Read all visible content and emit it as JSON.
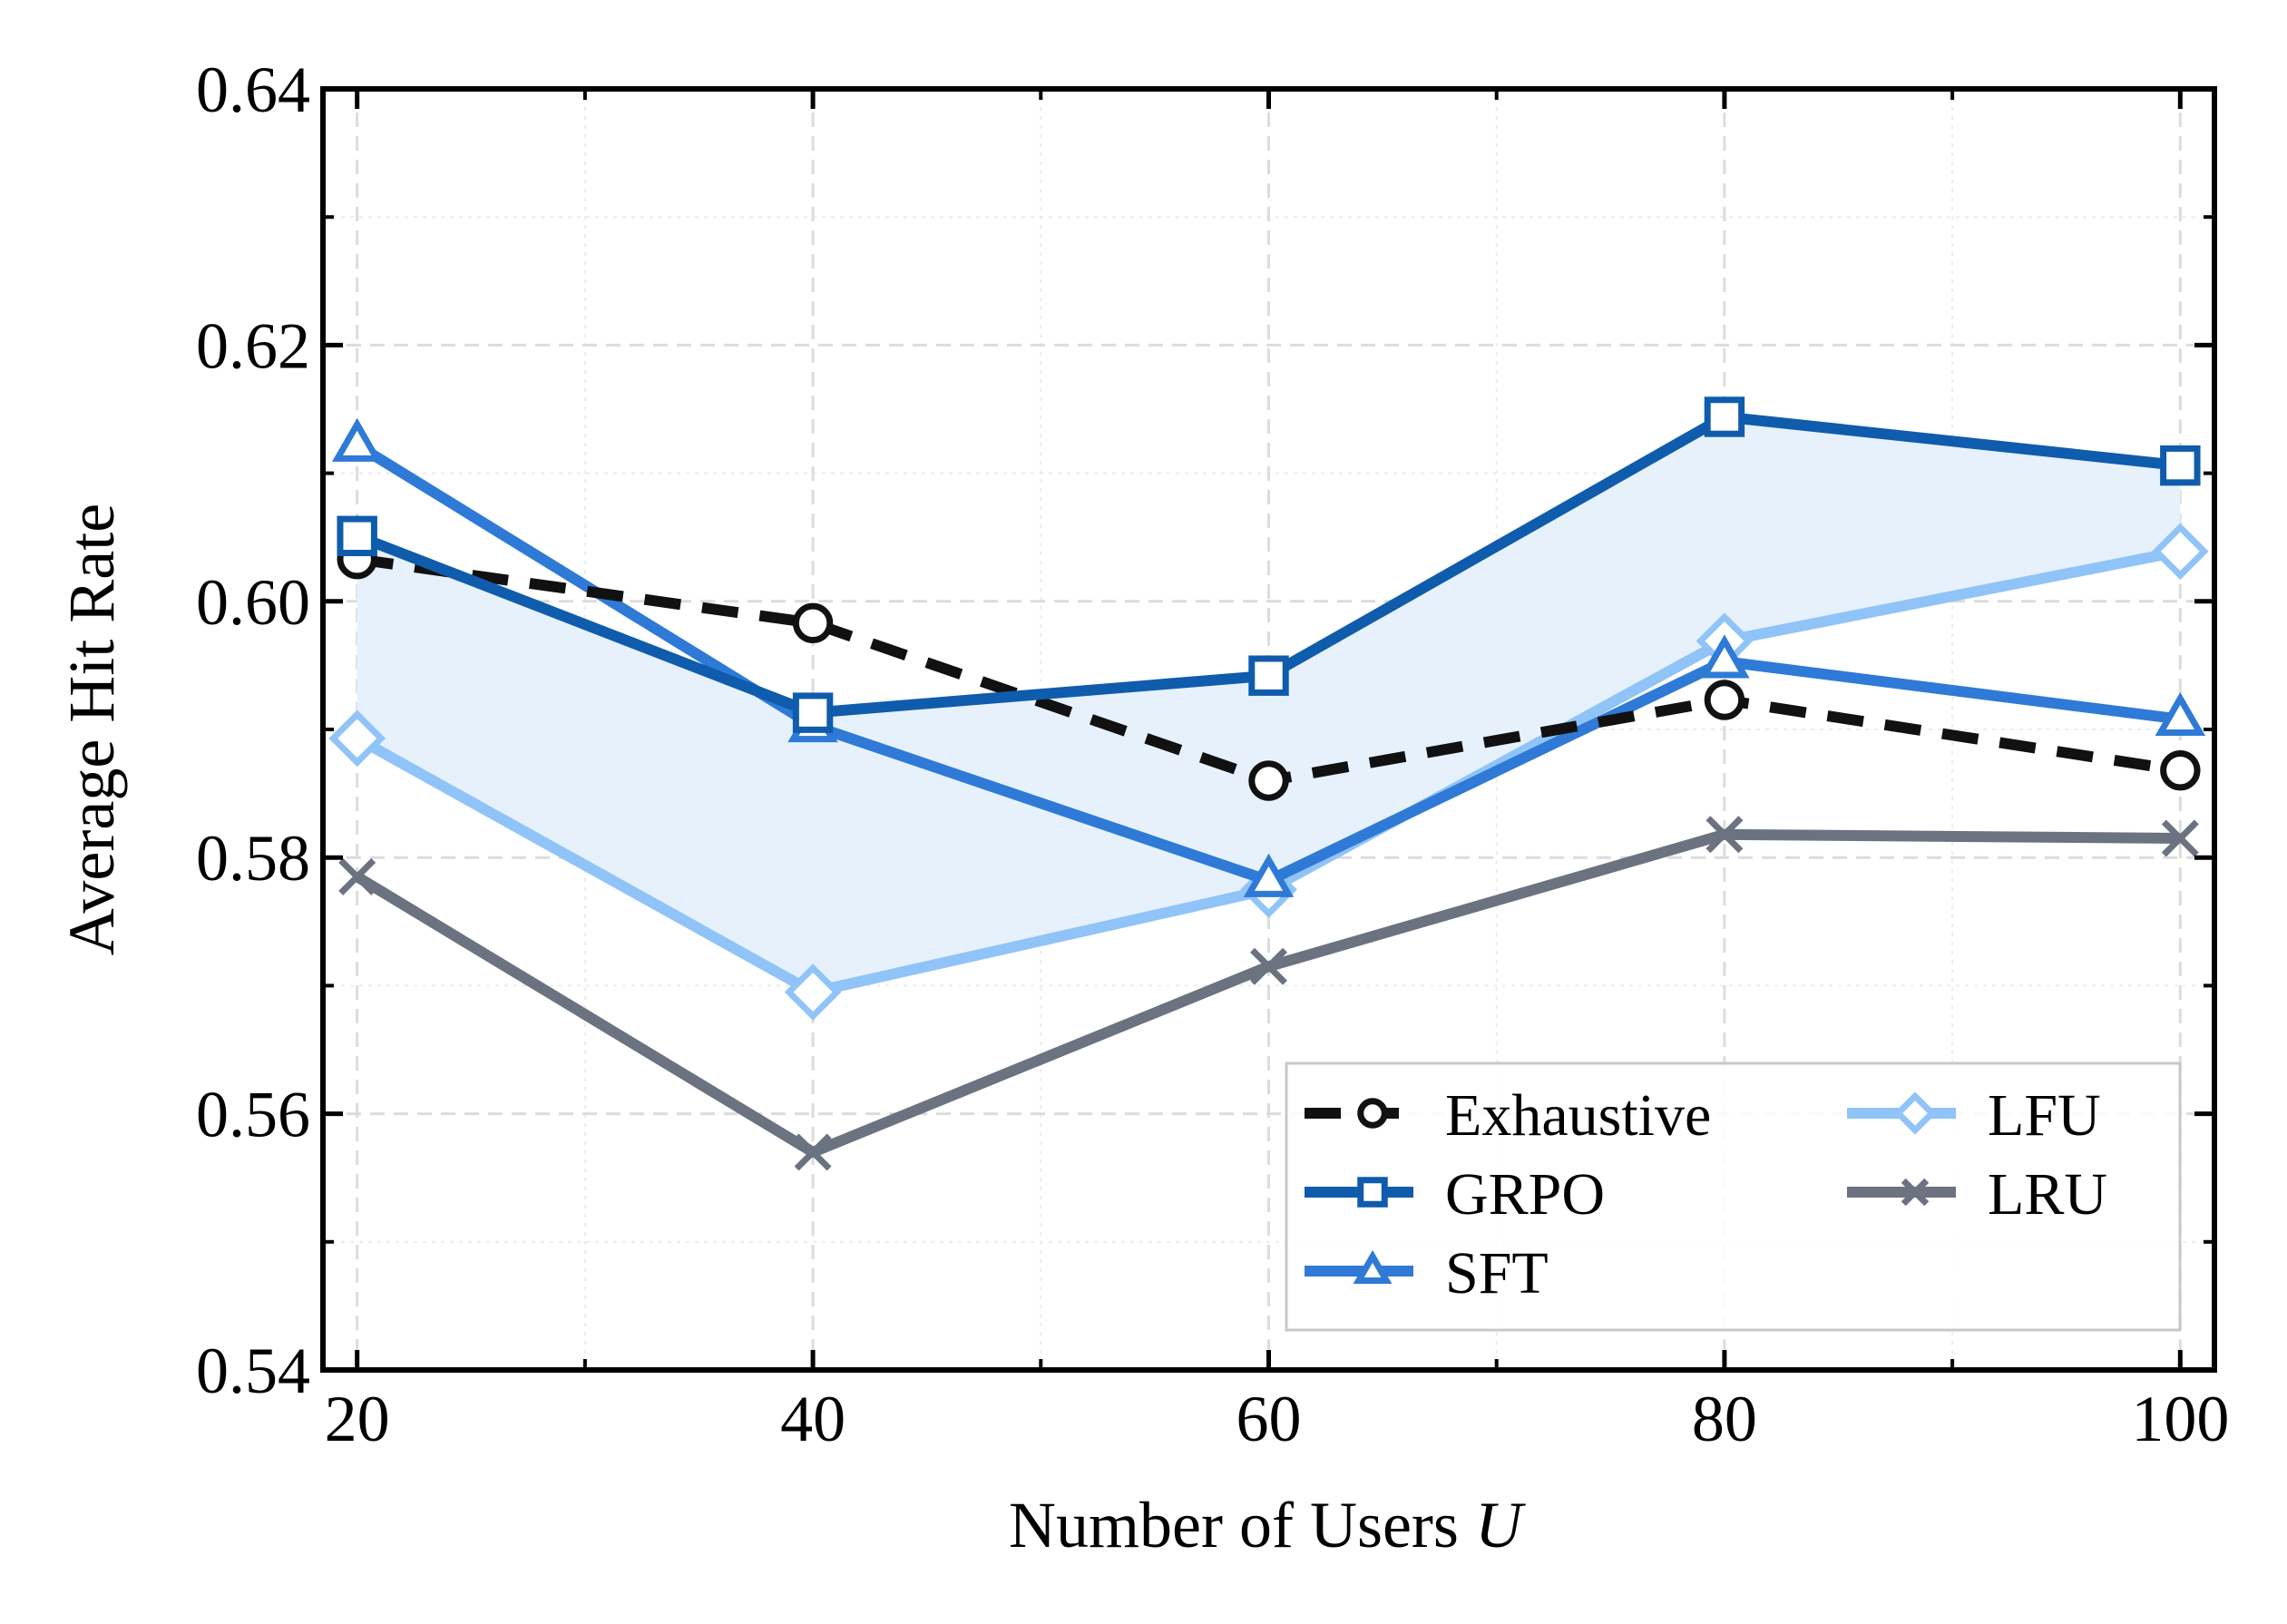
{
  "chart_data": {
    "type": "line",
    "title": "",
    "xlabel": "Number of Users ",
    "xlabel_var": "U",
    "ylabel": "Average Hit Rate",
    "x": [
      20,
      40,
      60,
      80,
      100
    ],
    "xticks": [
      "20",
      "40",
      "60",
      "80",
      "100"
    ],
    "yticks": [
      "0.54",
      "0.56",
      "0.58",
      "0.60",
      "0.62",
      "0.64"
    ],
    "xlim": [
      18.5,
      101.5
    ],
    "ylim": [
      0.54,
      0.64
    ],
    "grid": true,
    "legend_position": "bottom-right",
    "shaded_band": {
      "between": [
        "GRPO",
        "LFU"
      ],
      "color": "#e6f1fc"
    },
    "series": [
      {
        "name": "Exhaustive",
        "values": [
          0.6033,
          0.5983,
          0.586,
          0.5923,
          0.5868
        ],
        "color": "#111111",
        "marker": "circle",
        "dashed": true
      },
      {
        "name": "GRPO",
        "values": [
          0.6051,
          0.5913,
          0.5942,
          0.6144,
          0.6106
        ],
        "color": "#0f5cad",
        "marker": "square",
        "dashed": false
      },
      {
        "name": "SFT",
        "values": [
          0.6122,
          0.5903,
          0.5782,
          0.5953,
          0.5908
        ],
        "color": "#2e7ad6",
        "marker": "triangle",
        "dashed": false
      },
      {
        "name": "LFU",
        "values": [
          0.5893,
          0.5695,
          0.5775,
          0.5969,
          0.6039
        ],
        "color": "#90c4f8",
        "marker": "diamond",
        "dashed": false
      },
      {
        "name": "LRU",
        "values": [
          0.5785,
          0.557,
          0.5715,
          0.5818,
          0.5815
        ],
        "color": "#6b7280",
        "marker": "x",
        "dashed": false
      }
    ]
  }
}
